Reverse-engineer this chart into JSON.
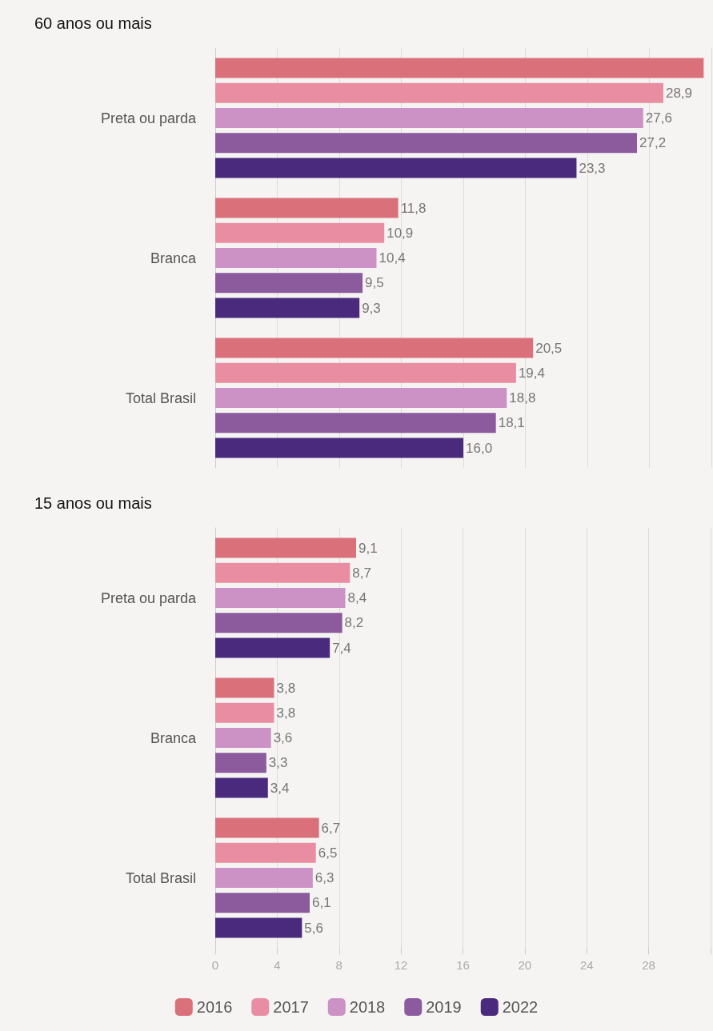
{
  "chart_data": [
    {
      "type": "bar",
      "orientation": "horizontal",
      "title": "60 anos ou mais",
      "categories": [
        "Preta ou parda",
        "Branca",
        "Total Brasil"
      ],
      "xlim": [
        0,
        32
      ],
      "xticks": [
        0,
        4,
        8,
        12,
        16,
        20,
        24,
        28,
        {
          "value": 32,
          "label": null
        }
      ],
      "grid": "x",
      "tick_labels": "y",
      "legend": false,
      "series": [
        {
          "color": "#d9707a",
          "values": [
            31.5,
            11.8,
            20.5
          ],
          "value_labels": [
            null,
            "11,8",
            "20,5"
          ]
        },
        {
          "color": "#e98ea2",
          "values": [
            28.9,
            10.9,
            19.4
          ],
          "value_labels": [
            "28,9",
            "10,9",
            "19,4"
          ]
        },
        {
          "color": "#cc92c6",
          "values": [
            27.6,
            10.4,
            18.8
          ],
          "value_labels": [
            "27,6",
            "10,4",
            "18,8"
          ]
        },
        {
          "color": "#8c5b9e",
          "values": [
            27.2,
            9.5,
            18.1
          ],
          "value_labels": [
            "27,2",
            "9,5",
            "18,1"
          ]
        },
        {
          "color": "#4a2a7c",
          "values": [
            23.3,
            9.3,
            16.0
          ],
          "value_labels": [
            "23,3",
            "9,3",
            "16,0"
          ]
        }
      ]
    },
    {
      "type": "bar",
      "orientation": "horizontal",
      "title": "15 anos ou mais",
      "categories": [
        "Preta ou parda",
        "Branca",
        "Total Brasil"
      ],
      "xlim": [
        0,
        32
      ],
      "xticks": [
        0,
        4,
        8,
        12,
        16,
        20,
        24,
        28,
        {
          "value": 32,
          "label": null
        }
      ],
      "grid": "x",
      "legend": "bottom",
      "series": [
        {
          "name": "2016",
          "color": "#d9707a",
          "values": [
            9.1,
            3.8,
            6.7
          ],
          "value_labels": [
            "9,1",
            "3,8",
            "6,7"
          ]
        },
        {
          "name": "2017",
          "color": "#e98ea2",
          "values": [
            8.7,
            3.8,
            6.5
          ],
          "value_labels": [
            "8,7",
            "3,8",
            "6,5"
          ]
        },
        {
          "name": "2018",
          "color": "#cc92c6",
          "values": [
            8.4,
            3.6,
            6.3
          ],
          "value_labels": [
            "8,4",
            "3,6",
            "6,3"
          ]
        },
        {
          "name": "2019",
          "color": "#8c5b9e",
          "values": [
            8.2,
            3.3,
            6.1
          ],
          "value_labels": [
            "8,2",
            "3,3",
            "6,1"
          ]
        },
        {
          "name": "2022",
          "color": "#4a2a7c",
          "values": [
            7.4,
            3.4,
            5.6
          ],
          "value_labels": [
            "7,4",
            "3,4",
            "5,6"
          ]
        }
      ]
    }
  ]
}
